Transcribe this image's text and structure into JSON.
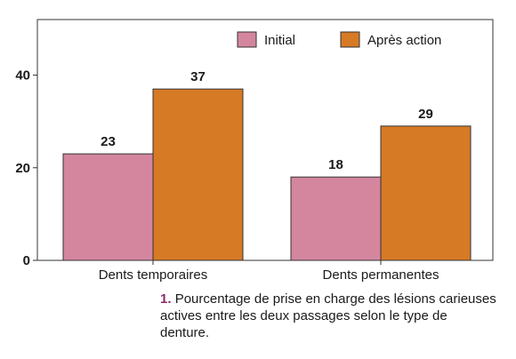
{
  "chart_data": {
    "type": "bar",
    "categories": [
      "Dents temporaires",
      "Dents permanentes"
    ],
    "series": [
      {
        "name": "Initial",
        "values": [
          23,
          18
        ],
        "color": "#d4869f"
      },
      {
        "name": "Après action",
        "values": [
          37,
          29
        ],
        "color": "#d67a26"
      }
    ],
    "value_labels": [
      [
        "23",
        "18"
      ],
      [
        "37",
        "29"
      ]
    ],
    "yticks": [
      0,
      20,
      40
    ],
    "ylim": [
      0,
      52
    ],
    "grid": false,
    "legend_position": "top-right",
    "border_color": "#333333"
  },
  "caption": {
    "number": "1.",
    "text": "Pourcentage de prise en charge des lésions carieuses actives entre les deux passages selon le type de denture."
  }
}
